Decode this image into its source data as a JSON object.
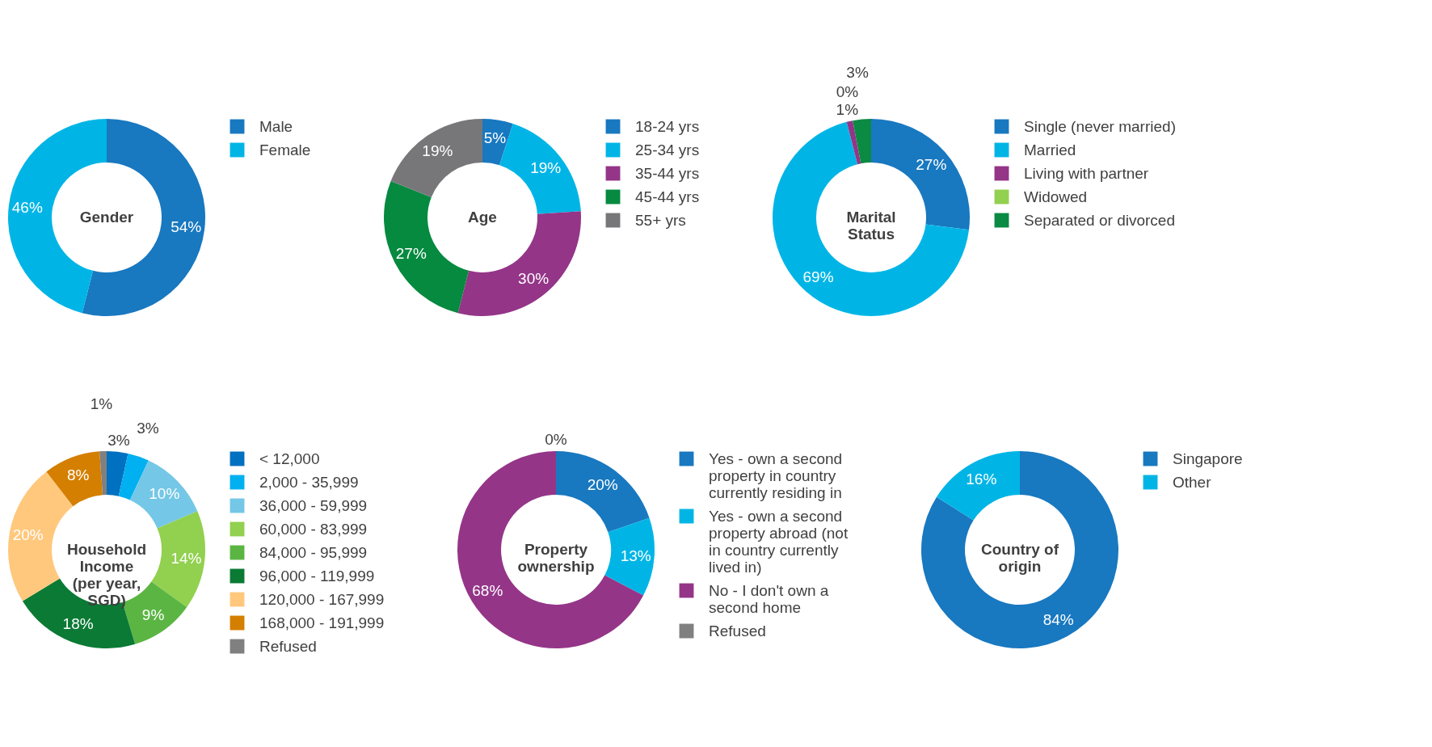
{
  "chart_data": [
    {
      "type": "donut",
      "title": "Gender",
      "categories": [
        "Male",
        "Female"
      ],
      "values": [
        54,
        46
      ],
      "colors": [
        "#1878c0",
        "#00b5e6"
      ],
      "value_labels": [
        "54%",
        "46%"
      ],
      "legend": "right"
    },
    {
      "type": "donut",
      "title": "Age",
      "categories": [
        "18-24 yrs",
        "25-34 yrs",
        "35-44 yrs",
        "45-44 yrs",
        "55+ yrs"
      ],
      "values": [
        5,
        19,
        30,
        27,
        19
      ],
      "colors": [
        "#1878c0",
        "#00b5e6",
        "#943588",
        "#058a3f",
        "#77777a"
      ],
      "value_labels": [
        "5%",
        "19%",
        "30%",
        "27%",
        "19%"
      ],
      "legend": "right"
    },
    {
      "type": "donut",
      "title": "Marital Status",
      "categories": [
        "Single (never married)",
        "Married",
        "Living with partner",
        "Widowed",
        "Separated or divorced"
      ],
      "values": [
        27,
        69,
        1,
        0,
        3
      ],
      "colors": [
        "#1878c0",
        "#00b5e6",
        "#943588",
        "#92d050",
        "#0a8a43"
      ],
      "value_labels": [
        "27%",
        "69%",
        "1%",
        "0%",
        "3%"
      ],
      "legend": "right"
    },
    {
      "type": "donut",
      "title": "Household Income (per year, SGD)",
      "categories": [
        "< 12,000",
        "2,000 - 35,999",
        "36,000 - 59,999",
        "60,000 - 83,999",
        "84,000 - 95,999",
        "96,000 - 119,999",
        "120,000 - 167,999",
        "168,000 - 191,999",
        "Refused"
      ],
      "values": [
        3,
        3,
        10,
        14,
        9,
        18,
        20,
        8,
        1
      ],
      "colors": [
        "#0070c0",
        "#00b0f0",
        "#74c7e6",
        "#92d050",
        "#5bb543",
        "#0a7a35",
        "#ffc87d",
        "#d47f00",
        "#808080"
      ],
      "value_labels": [
        "3%",
        "3%",
        "10%",
        "14%",
        "9%",
        "18%",
        "20%",
        "8%",
        "1%"
      ],
      "legend": "right"
    },
    {
      "type": "donut",
      "title": "Property ownership",
      "categories": [
        "Yes - own a second property in country currently residing in",
        "Yes - own a second property abroad (not in country currently lived in)",
        "No - I don't own a second home",
        "Refused"
      ],
      "values": [
        20,
        13,
        68,
        0
      ],
      "colors": [
        "#1878c0",
        "#00b5e6",
        "#943588",
        "#808080"
      ],
      "value_labels": [
        "20%",
        "13%",
        "68%",
        "0%"
      ],
      "legend": "right"
    },
    {
      "type": "donut",
      "title": "Country of origin",
      "categories": [
        "Singapore",
        "Other"
      ],
      "values": [
        84,
        16
      ],
      "colors": [
        "#1878c0",
        "#00b5e6"
      ],
      "value_labels": [
        "84%",
        "16%"
      ],
      "legend": "right"
    }
  ]
}
